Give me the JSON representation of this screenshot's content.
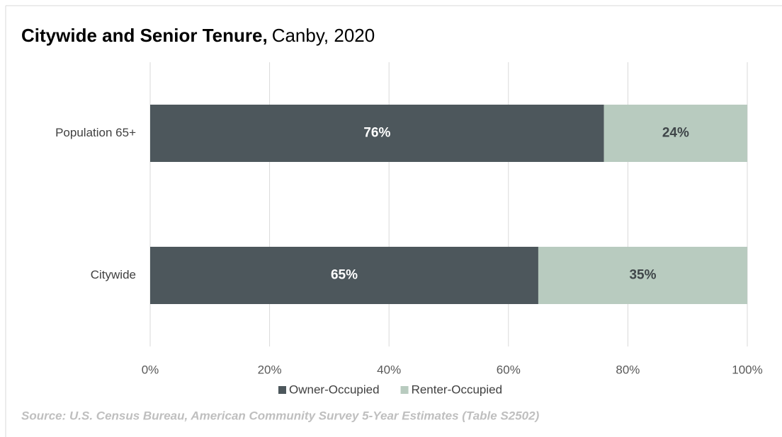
{
  "chart_data": {
    "type": "stacked-bar-horizontal",
    "title": "Citywide and Senior Tenure,",
    "subtitle": "Canby, 2020",
    "categories": [
      "Population 65+",
      "Citywide"
    ],
    "series": [
      {
        "name": "Owner-Occupied",
        "color": "#4d575c",
        "label_color": "#ffffff",
        "values": [
          76,
          65
        ],
        "value_labels": [
          "76%",
          "65%"
        ]
      },
      {
        "name": "Renter-Occupied",
        "color": "#b8cbbf",
        "label_color": "#3f4649",
        "values": [
          24,
          35
        ],
        "value_labels": [
          "24%",
          "35%"
        ]
      }
    ],
    "xlim": [
      0,
      100
    ],
    "xticks": [
      {
        "value": 0,
        "label": "0%"
      },
      {
        "value": 20,
        "label": "20%"
      },
      {
        "value": 40,
        "label": "40%"
      },
      {
        "value": 60,
        "label": "60%"
      },
      {
        "value": 80,
        "label": "80%"
      },
      {
        "value": 100,
        "label": "100%"
      }
    ],
    "grid": true,
    "legend": "bottom",
    "source": "Source: U.S. Census Bureau, American Community Survey 5-Year Estimates (Table S2502)"
  }
}
